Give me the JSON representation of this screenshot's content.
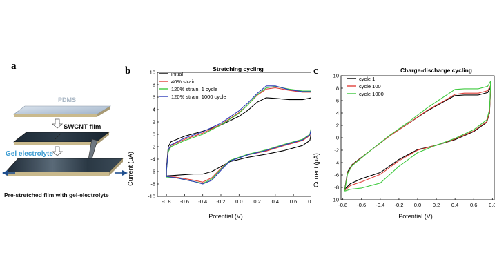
{
  "panel_a": {
    "letter": "a",
    "pdms_label": "PDMS",
    "swcnt_label": "SWCNT film",
    "gel_label": "Gel electrolyte",
    "bottom_label": "Pre-stretched film with gel-electrolyte",
    "colors": {
      "pdms": "#b9c8d8",
      "gel_label": "#3a9bd2",
      "arrow": "#1f4f8f"
    }
  },
  "chart_data": [
    {
      "letter": "b",
      "type": "line",
      "title": "Stretching cycling",
      "xlabel": "Potential (V)",
      "ylabel": "Current (μA)",
      "xlim": [
        -0.9,
        0.85
      ],
      "ylim": [
        -10,
        10
      ],
      "xticks": [
        "-0.8",
        "-0.6",
        "-0.4",
        "-0.2",
        "0.0",
        "0.2",
        "0.4",
        "0.6",
        "0.8"
      ],
      "yticks": [
        "-10",
        "-8",
        "-6",
        "-4",
        "-2",
        "0",
        "2",
        "4",
        "6",
        "8",
        "10"
      ],
      "legend_position": "top-left",
      "series": [
        {
          "name": "initial",
          "color": "#000000",
          "upper": [
            [
              -0.8,
              -5.5
            ],
            [
              -0.78,
              -2.0
            ],
            [
              -0.75,
              -1.2
            ],
            [
              -0.6,
              -0.3
            ],
            [
              -0.4,
              0.5
            ],
            [
              -0.2,
              1.5
            ],
            [
              0.0,
              2.9
            ],
            [
              0.1,
              3.9
            ],
            [
              0.2,
              5.2
            ],
            [
              0.3,
              5.9
            ],
            [
              0.4,
              5.8
            ],
            [
              0.55,
              5.6
            ],
            [
              0.7,
              5.6
            ],
            [
              0.8,
              5.9
            ]
          ],
          "lower": [
            [
              0.8,
              0.4
            ],
            [
              0.78,
              -1.0
            ],
            [
              0.7,
              -1.8
            ],
            [
              0.5,
              -2.6
            ],
            [
              0.3,
              -3.2
            ],
            [
              0.1,
              -3.7
            ],
            [
              -0.1,
              -4.4
            ],
            [
              -0.2,
              -5.2
            ],
            [
              -0.3,
              -6.0
            ],
            [
              -0.4,
              -6.4
            ],
            [
              -0.5,
              -6.4
            ],
            [
              -0.7,
              -6.6
            ],
            [
              -0.8,
              -6.7
            ]
          ]
        },
        {
          "name": "40% strain",
          "color": "#e0413a",
          "upper": [
            [
              -0.8,
              -5.8
            ],
            [
              -0.78,
              -2.6
            ],
            [
              -0.75,
              -1.8
            ],
            [
              -0.6,
              -0.8
            ],
            [
              -0.4,
              0.2
            ],
            [
              -0.2,
              1.6
            ],
            [
              0.0,
              3.5
            ],
            [
              0.1,
              4.8
            ],
            [
              0.2,
              6.3
            ],
            [
              0.3,
              7.3
            ],
            [
              0.4,
              7.5
            ],
            [
              0.55,
              7.1
            ],
            [
              0.7,
              6.8
            ],
            [
              0.8,
              6.8
            ]
          ],
          "lower": [
            [
              0.8,
              1.0
            ],
            [
              0.78,
              -0.2
            ],
            [
              0.7,
              -1.0
            ],
            [
              0.5,
              -1.8
            ],
            [
              0.3,
              -2.7
            ],
            [
              0.1,
              -3.3
            ],
            [
              -0.1,
              -4.2
            ],
            [
              -0.2,
              -5.5
            ],
            [
              -0.3,
              -7.0
            ],
            [
              -0.4,
              -7.7
            ],
            [
              -0.5,
              -7.4
            ],
            [
              -0.7,
              -6.9
            ],
            [
              -0.8,
              -6.8
            ]
          ]
        },
        {
          "name": "120% strain, 1 cycle",
          "color": "#3ec93e",
          "upper": [
            [
              -0.8,
              -6.0
            ],
            [
              -0.78,
              -2.8
            ],
            [
              -0.75,
              -2.0
            ],
            [
              -0.6,
              -1.0
            ],
            [
              -0.4,
              0.0
            ],
            [
              -0.2,
              1.5
            ],
            [
              0.0,
              3.4
            ],
            [
              0.1,
              4.8
            ],
            [
              0.2,
              6.4
            ],
            [
              0.3,
              7.5
            ],
            [
              0.4,
              7.7
            ],
            [
              0.55,
              7.3
            ],
            [
              0.7,
              7.0
            ],
            [
              0.8,
              7.0
            ]
          ],
          "lower": [
            [
              0.8,
              1.3
            ],
            [
              0.78,
              0.0
            ],
            [
              0.7,
              -0.8
            ],
            [
              0.5,
              -1.6
            ],
            [
              0.3,
              -2.5
            ],
            [
              0.1,
              -3.2
            ],
            [
              -0.1,
              -4.2
            ],
            [
              -0.2,
              -5.6
            ],
            [
              -0.3,
              -7.2
            ],
            [
              -0.4,
              -7.9
            ],
            [
              -0.5,
              -7.6
            ],
            [
              -0.7,
              -7.0
            ],
            [
              -0.8,
              -6.9
            ]
          ]
        },
        {
          "name": "120% strain, 1000 cycle",
          "color": "#2f3db8",
          "upper": [
            [
              -0.8,
              -5.9
            ],
            [
              -0.78,
              -2.5
            ],
            [
              -0.75,
              -1.7
            ],
            [
              -0.6,
              -0.6
            ],
            [
              -0.4,
              0.4
            ],
            [
              -0.2,
              1.8
            ],
            [
              0.0,
              3.8
            ],
            [
              0.1,
              5.1
            ],
            [
              0.2,
              6.6
            ],
            [
              0.3,
              7.8
            ],
            [
              0.4,
              7.8
            ],
            [
              0.55,
              7.2
            ],
            [
              0.7,
              6.9
            ],
            [
              0.8,
              6.9
            ]
          ],
          "lower": [
            [
              0.8,
              1.1
            ],
            [
              0.78,
              -0.1
            ],
            [
              0.7,
              -0.9
            ],
            [
              0.5,
              -1.7
            ],
            [
              0.3,
              -2.6
            ],
            [
              0.1,
              -3.3
            ],
            [
              -0.1,
              -4.3
            ],
            [
              -0.2,
              -5.8
            ],
            [
              -0.3,
              -7.4
            ],
            [
              -0.4,
              -8.0
            ],
            [
              -0.5,
              -7.6
            ],
            [
              -0.7,
              -7.0
            ],
            [
              -0.8,
              -6.8
            ]
          ]
        }
      ]
    },
    {
      "letter": "c",
      "type": "line",
      "title": "Charge-discharge cycling",
      "xlabel": "Potential (V)",
      "ylabel": "Current (μA)",
      "xlim": [
        -0.82,
        0.82
      ],
      "ylim": [
        -10,
        10
      ],
      "xticks": [
        "-0.8",
        "-0.6",
        "-0.4",
        "-0.2",
        "0.0",
        "0.2",
        "0.4",
        "0.6",
        "0.8"
      ],
      "yticks": [
        "-10",
        "-8",
        "-6",
        "-4",
        "-2",
        "0",
        "2",
        "4",
        "6",
        "8",
        "10"
      ],
      "legend_position": "top-left",
      "series": [
        {
          "name": "cycle 1",
          "color": "#000000",
          "upper": [
            [
              -0.78,
              -8.3
            ],
            [
              -0.75,
              -5.5
            ],
            [
              -0.7,
              -4.3
            ],
            [
              -0.5,
              -2.0
            ],
            [
              -0.3,
              0.3
            ],
            [
              -0.1,
              2.3
            ],
            [
              0.1,
              4.3
            ],
            [
              0.3,
              6.0
            ],
            [
              0.4,
              6.8
            ],
            [
              0.5,
              6.9
            ],
            [
              0.65,
              6.9
            ],
            [
              0.75,
              7.3
            ],
            [
              0.78,
              8.1
            ]
          ],
          "lower": [
            [
              0.78,
              7.6
            ],
            [
              0.77,
              4.0
            ],
            [
              0.74,
              2.5
            ],
            [
              0.6,
              1.0
            ],
            [
              0.4,
              -0.3
            ],
            [
              0.2,
              -1.2
            ],
            [
              0.0,
              -1.9
            ],
            [
              -0.2,
              -3.5
            ],
            [
              -0.4,
              -5.6
            ],
            [
              -0.6,
              -6.6
            ],
            [
              -0.72,
              -7.4
            ],
            [
              -0.78,
              -8.3
            ]
          ]
        },
        {
          "name": "cycle 100",
          "color": "#e0413a",
          "upper": [
            [
              -0.78,
              -8.5
            ],
            [
              -0.75,
              -5.7
            ],
            [
              -0.7,
              -4.4
            ],
            [
              -0.5,
              -2.0
            ],
            [
              -0.3,
              0.3
            ],
            [
              -0.1,
              2.3
            ],
            [
              0.1,
              4.4
            ],
            [
              0.3,
              6.1
            ],
            [
              0.4,
              7.0
            ],
            [
              0.5,
              7.2
            ],
            [
              0.65,
              7.2
            ],
            [
              0.75,
              7.6
            ],
            [
              0.78,
              8.4
            ]
          ],
          "lower": [
            [
              0.78,
              7.7
            ],
            [
              0.77,
              4.2
            ],
            [
              0.74,
              2.6
            ],
            [
              0.6,
              1.1
            ],
            [
              0.4,
              -0.2
            ],
            [
              0.2,
              -1.2
            ],
            [
              0.0,
              -2.0
            ],
            [
              -0.2,
              -3.7
            ],
            [
              -0.4,
              -5.9
            ],
            [
              -0.6,
              -7.1
            ],
            [
              -0.72,
              -7.7
            ],
            [
              -0.78,
              -8.5
            ]
          ]
        },
        {
          "name": "cycle 1000",
          "color": "#3ec93e",
          "upper": [
            [
              -0.78,
              -8.6
            ],
            [
              -0.75,
              -5.8
            ],
            [
              -0.7,
              -4.5
            ],
            [
              -0.5,
              -2.0
            ],
            [
              -0.3,
              0.4
            ],
            [
              -0.1,
              2.5
            ],
            [
              0.1,
              4.8
            ],
            [
              0.3,
              6.8
            ],
            [
              0.4,
              7.8
            ],
            [
              0.5,
              7.9
            ],
            [
              0.65,
              7.9
            ],
            [
              0.75,
              8.3
            ],
            [
              0.78,
              9.1
            ]
          ],
          "lower": [
            [
              0.78,
              8.2
            ],
            [
              0.77,
              4.6
            ],
            [
              0.74,
              2.9
            ],
            [
              0.6,
              1.3
            ],
            [
              0.4,
              -0.1
            ],
            [
              0.2,
              -1.2
            ],
            [
              0.0,
              -2.4
            ],
            [
              -0.2,
              -4.6
            ],
            [
              -0.4,
              -7.3
            ],
            [
              -0.6,
              -8.1
            ],
            [
              -0.72,
              -8.3
            ],
            [
              -0.78,
              -8.6
            ]
          ]
        }
      ]
    }
  ]
}
